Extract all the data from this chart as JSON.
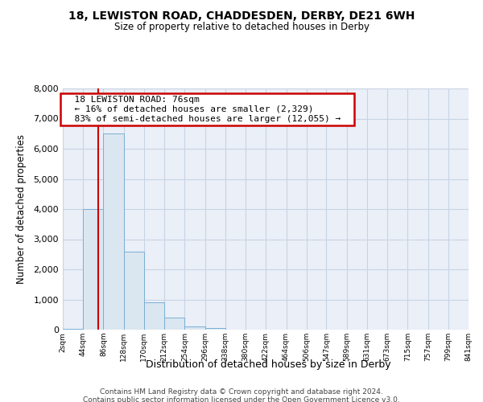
{
  "title1": "18, LEWISTON ROAD, CHADDESDEN, DERBY, DE21 6WH",
  "title2": "Size of property relative to detached houses in Derby",
  "xlabel": "Distribution of detached houses by size in Derby",
  "ylabel": "Number of detached properties",
  "footer1": "Contains HM Land Registry data © Crown copyright and database right 2024.",
  "footer2": "Contains public sector information licensed under the Open Government Licence v3.0.",
  "annotation_title": "18 LEWISTON ROAD: 76sqm",
  "annotation_line1": "← 16% of detached houses are smaller (2,329)",
  "annotation_line2": "83% of semi-detached houses are larger (12,055) →",
  "property_size": 76,
  "bin_edges": [
    2,
    44,
    86,
    128,
    170,
    212,
    254,
    296,
    338,
    380,
    422,
    464,
    506,
    547,
    589,
    631,
    673,
    715,
    757,
    799,
    841
  ],
  "bar_heights": [
    25,
    4000,
    6500,
    2600,
    900,
    400,
    100,
    50,
    10,
    5,
    2,
    1,
    0,
    0,
    0,
    0,
    0,
    0,
    0,
    0
  ],
  "bar_color": "#dae6f0",
  "bar_edge_color": "#7aafd4",
  "vline_color": "#cc0000",
  "vline_x": 76,
  "annotation_box_color": "#cc0000",
  "ylim": [
    0,
    8000
  ],
  "yticks": [
    0,
    1000,
    2000,
    3000,
    4000,
    5000,
    6000,
    7000,
    8000
  ],
  "grid_color": "#c8d4e4",
  "bg_color": "#eaeff8"
}
